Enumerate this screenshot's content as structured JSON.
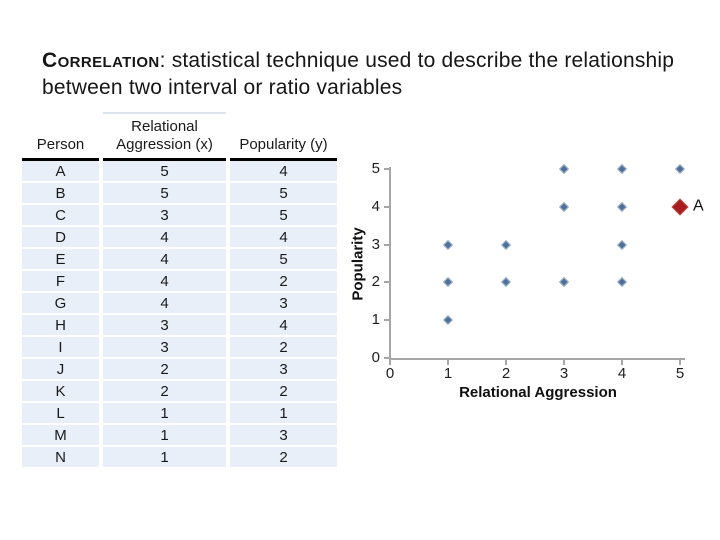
{
  "slide": {
    "title_lead": "Correlation",
    "title_rest": ": statistical technique used to describe the relationship between two interval or ratio variables"
  },
  "table": {
    "columns": [
      "Person",
      "Relational Aggression (x)",
      "Popularity (y)"
    ],
    "rows": [
      [
        "A",
        5,
        4
      ],
      [
        "B",
        5,
        5
      ],
      [
        "C",
        3,
        5
      ],
      [
        "D",
        4,
        4
      ],
      [
        "E",
        4,
        5
      ],
      [
        "F",
        4,
        2
      ],
      [
        "G",
        4,
        3
      ],
      [
        "H",
        3,
        4
      ],
      [
        "I",
        3,
        2
      ],
      [
        "J",
        2,
        3
      ],
      [
        "K",
        2,
        2
      ],
      [
        "L",
        1,
        1
      ],
      [
        "M",
        1,
        3
      ],
      [
        "N",
        1,
        2
      ]
    ]
  },
  "chart_data": {
    "type": "scatter",
    "xlabel": "Relational Aggression",
    "ylabel": "Popularity",
    "xlim": [
      0,
      5
    ],
    "ylim": [
      0,
      5
    ],
    "xticks": [
      0,
      1,
      2,
      3,
      4,
      5
    ],
    "yticks": [
      0,
      1,
      2,
      3,
      4,
      5
    ],
    "grid": false,
    "series": [
      {
        "name": "persons",
        "marker": "diamond",
        "marker_color": "#4F7199",
        "points": [
          [
            1,
            1
          ],
          [
            1,
            2
          ],
          [
            1,
            3
          ],
          [
            2,
            2
          ],
          [
            2,
            3
          ],
          [
            3,
            2
          ],
          [
            3,
            4
          ],
          [
            3,
            5
          ],
          [
            4,
            2
          ],
          [
            4,
            3
          ],
          [
            4,
            4
          ],
          [
            4,
            5
          ],
          [
            5,
            5
          ]
        ]
      },
      {
        "name": "person-A-highlight",
        "marker": "diamond",
        "marker_color": "#A81D1D",
        "points": [
          [
            5,
            4
          ]
        ],
        "annotation": "A"
      }
    ]
  },
  "colors": {
    "table_row_band": "#E9EFF8",
    "axis_line": "#A6A6A6",
    "text": "#1A1A1A"
  }
}
